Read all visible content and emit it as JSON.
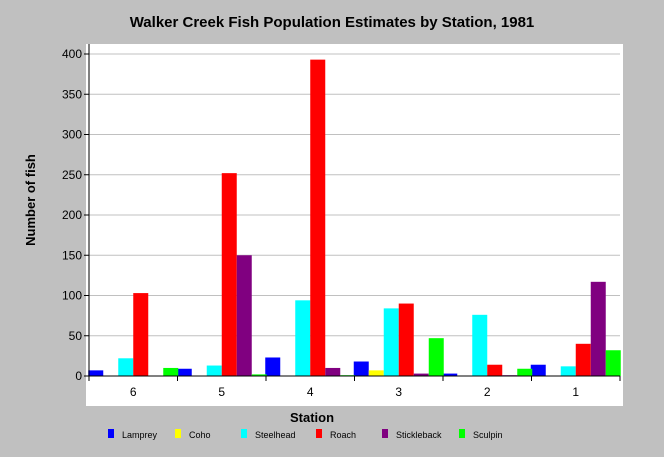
{
  "chart_data": {
    "type": "bar",
    "title": "Walker Creek Fish Population Estimates by Station, 1981",
    "xlabel": "Station",
    "ylabel": "Number of fish",
    "categories": [
      "6",
      "5",
      "4",
      "3",
      "2",
      "1"
    ],
    "ylim": [
      0,
      400
    ],
    "yticks": [
      0,
      50,
      100,
      150,
      200,
      250,
      300,
      350,
      400
    ],
    "grid": true,
    "legend_position": "bottom",
    "colors": {
      "background": "#c0c0c0",
      "plot_background": "#ffffff",
      "gridline": "#c0c0c0"
    },
    "series": [
      {
        "name": "Lamprey",
        "color": "#0000ff",
        "values": [
          7,
          9,
          23,
          18,
          3,
          14
        ]
      },
      {
        "name": "Coho",
        "color": "#ffff00",
        "values": [
          0,
          0,
          0,
          7,
          0,
          0
        ]
      },
      {
        "name": "Steelhead",
        "color": "#00ffff",
        "values": [
          22,
          13,
          94,
          84,
          76,
          12
        ]
      },
      {
        "name": "Roach",
        "color": "#ff0000",
        "values": [
          103,
          252,
          393,
          90,
          14,
          40
        ]
      },
      {
        "name": "Stickleback",
        "color": "#800080",
        "values": [
          0,
          150,
          10,
          3,
          1,
          117
        ]
      },
      {
        "name": "Sculpin",
        "color": "#00ff00",
        "values": [
          10,
          2,
          1,
          47,
          9,
          32
        ]
      }
    ]
  }
}
